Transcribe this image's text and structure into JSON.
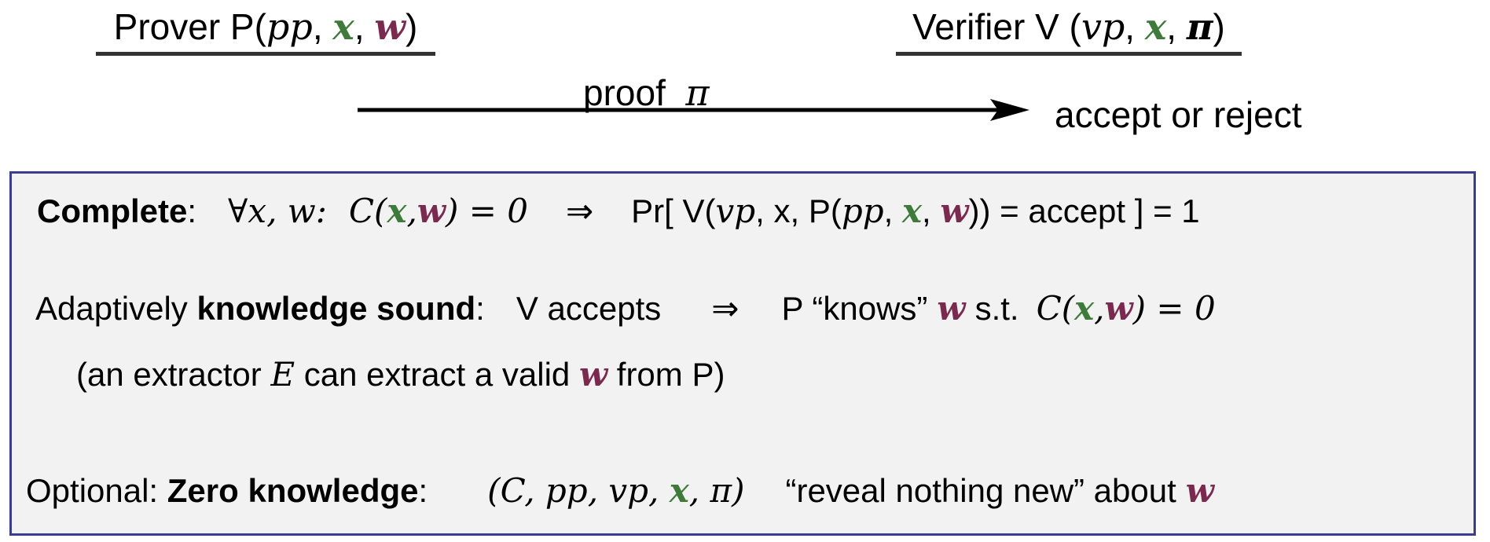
{
  "header": {
    "prover": {
      "prefix": "Prover P(",
      "pp": "pp",
      "x": "x",
      "w": "w",
      "suffix": ")"
    },
    "verifier": {
      "prefix": "Verifier V (",
      "vp": "vp",
      "x": "x",
      "pi": "π",
      "suffix": ")"
    },
    "proof_label": "proof",
    "proof_symbol": "π",
    "result_label": "accept or reject"
  },
  "properties": {
    "complete": {
      "term": "Complete",
      "colon": ":",
      "forall": "∀x, w:",
      "circuit": "C(",
      "x": "x",
      "comma": ",",
      "w": "w",
      "eq": ") = 0",
      "implies": "⇒",
      "pr_open": "Pr[  V(",
      "vp": "vp",
      "x_plain": ", x, P(",
      "pp": "pp",
      "sep1": ", ",
      "x2": "x",
      "sep2": ", ",
      "w2": "w",
      "tail": ")) = accept ] = 1"
    },
    "knowledge_sound": {
      "prefix": "Adaptively ",
      "term": "knowledge sound",
      "colon": ":",
      "premise": "V accepts",
      "implies": "⇒",
      "conclusion": "P “knows”",
      "w": "w",
      "st": "s.t.",
      "circuit": "C(",
      "x": "x",
      "comma": ",",
      "w2": "w",
      "eq": ") = 0"
    },
    "extractor": {
      "open": "(an extractor ",
      "E": "E",
      "middle": " can extract a valid ",
      "w": "w",
      "close": " from P)"
    },
    "zero_knowledge": {
      "prefix": "Optional: ",
      "term": "Zero knowledge",
      "colon": ":",
      "tuple_open": "(",
      "C": "C",
      "pp": "pp",
      "vp": "vp",
      "x": "x",
      "pi": "π",
      "tuple_close": ")",
      "sep": ", ",
      "quote": "“reveal nothing new” about",
      "w": "w"
    }
  },
  "colors": {
    "statement": "#3e7a3a",
    "witness": "#7a2a4f",
    "box_border": "#3d3d8f",
    "box_fill": "#f2f2f2"
  }
}
